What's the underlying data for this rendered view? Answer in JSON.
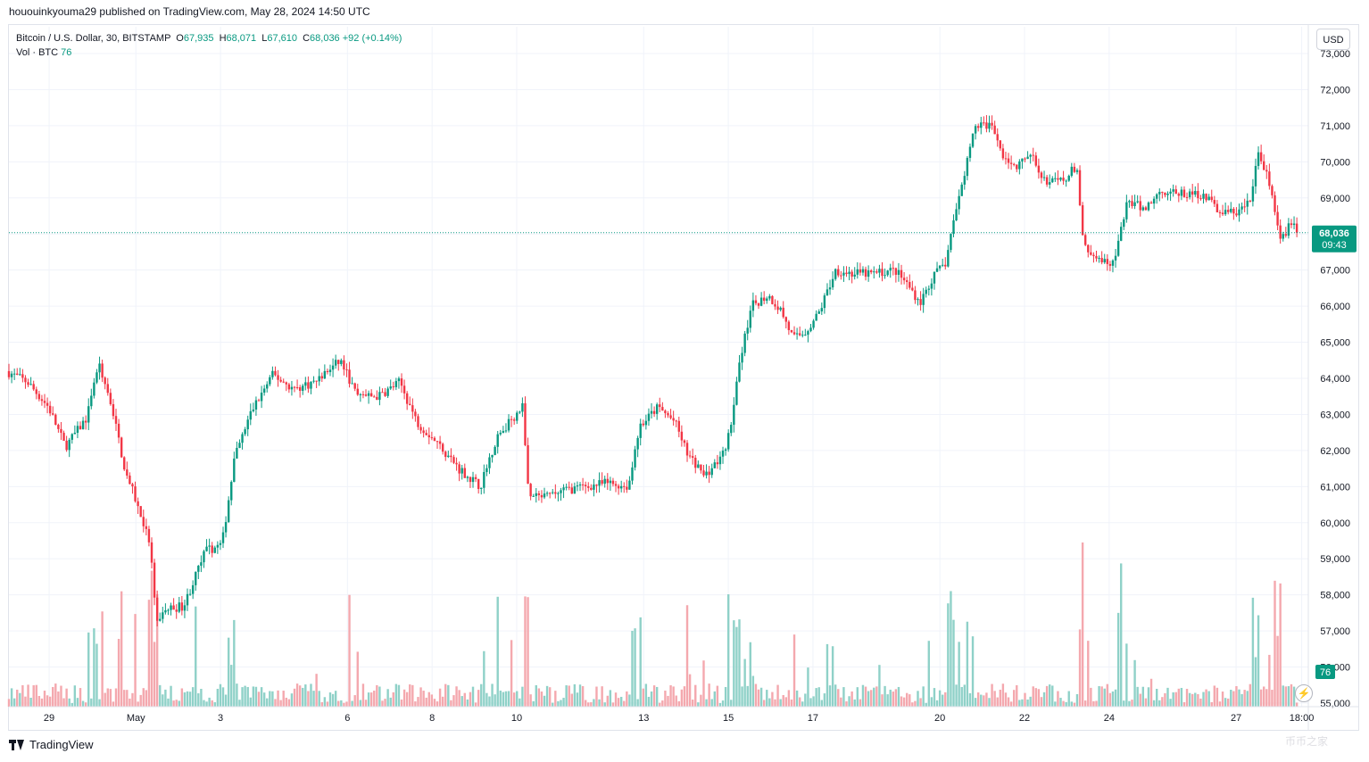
{
  "header": {
    "published_by": "hououinkyouma29 published on TradingView.com, May 28, 2024 14:50 UTC"
  },
  "legend": {
    "symbol": "Bitcoin / U.S. Dollar, 30, BITSTAMP",
    "o_label": "O",
    "o_value": "67,935",
    "h_label": "H",
    "h_value": "68,071",
    "l_label": "L",
    "l_value": "67,610",
    "c_label": "C",
    "c_value": "68,036",
    "change": "+92 (+0.14%)",
    "vol_label": "Vol · BTC",
    "vol_value": "76"
  },
  "price_axis": {
    "currency_button": "USD",
    "last_price_label": "68,036",
    "countdown_label": "09:43",
    "volume_label": "76"
  },
  "footer": {
    "brand": "TradingView",
    "watermark": "币币之家"
  },
  "colors": {
    "up": "#089981",
    "down": "#f23645",
    "up_volume": "#8fd1c8",
    "down_volume": "#f4a8ae",
    "grid": "#f0f3fa"
  },
  "chart_data": {
    "type": "candlestick",
    "interval": "30",
    "y_unit": "USD",
    "ylim": [
      55000,
      73000
    ],
    "y_ticks": [
      "55,000",
      "56,000",
      "57,000",
      "58,000",
      "59,000",
      "60,000",
      "61,000",
      "62,000",
      "63,000",
      "64,000",
      "65,000",
      "66,000",
      "67,000",
      "68,000",
      "69,000",
      "70,000",
      "71,000",
      "72,000",
      "73,000"
    ],
    "x_ticks": [
      "29",
      "May",
      "3",
      "6",
      "8",
      "10",
      "13",
      "15",
      "17",
      "20",
      "22",
      "24",
      "27",
      "18:00"
    ],
    "last_price": 68036,
    "anchors": [
      {
        "t": 0,
        "p": 64200
      },
      {
        "t": 0.5,
        "p": 63900
      },
      {
        "t": 1.0,
        "p": 63200
      },
      {
        "t": 1.4,
        "p": 62100
      },
      {
        "t": 1.9,
        "p": 62900
      },
      {
        "t": 2.2,
        "p": 64400
      },
      {
        "t": 2.5,
        "p": 63200
      },
      {
        "t": 2.8,
        "p": 61500
      },
      {
        "t": 3.1,
        "p": 60500
      },
      {
        "t": 3.4,
        "p": 59400
      },
      {
        "t": 3.55,
        "p": 57300
      },
      {
        "t": 3.8,
        "p": 57600
      },
      {
        "t": 4.2,
        "p": 57700
      },
      {
        "t": 4.7,
        "p": 59200
      },
      {
        "t": 5.1,
        "p": 59400
      },
      {
        "t": 5.4,
        "p": 61800
      },
      {
        "t": 5.8,
        "p": 63100
      },
      {
        "t": 6.3,
        "p": 64100
      },
      {
        "t": 6.8,
        "p": 63700
      },
      {
        "t": 7.3,
        "p": 63900
      },
      {
        "t": 7.9,
        "p": 64500
      },
      {
        "t": 8.3,
        "p": 63500
      },
      {
        "t": 8.8,
        "p": 63500
      },
      {
        "t": 9.3,
        "p": 63900
      },
      {
        "t": 9.7,
        "p": 62800
      },
      {
        "t": 10.2,
        "p": 62200
      },
      {
        "t": 10.7,
        "p": 61500
      },
      {
        "t": 11.2,
        "p": 61000
      },
      {
        "t": 11.6,
        "p": 62400
      },
      {
        "t": 12.2,
        "p": 63200
      },
      {
        "t": 12.35,
        "p": 60700
      },
      {
        "t": 12.7,
        "p": 60700
      },
      {
        "t": 13.2,
        "p": 60900
      },
      {
        "t": 13.7,
        "p": 61000
      },
      {
        "t": 14.2,
        "p": 61100
      },
      {
        "t": 14.7,
        "p": 61000
      },
      {
        "t": 15.0,
        "p": 62700
      },
      {
        "t": 15.4,
        "p": 63200
      },
      {
        "t": 15.8,
        "p": 62800
      },
      {
        "t": 16.1,
        "p": 61900
      },
      {
        "t": 16.5,
        "p": 61300
      },
      {
        "t": 16.9,
        "p": 61800
      },
      {
        "t": 17.1,
        "p": 62500
      },
      {
        "t": 17.3,
        "p": 64200
      },
      {
        "t": 17.6,
        "p": 66000
      },
      {
        "t": 18.0,
        "p": 66300
      },
      {
        "t": 18.3,
        "p": 65900
      },
      {
        "t": 18.6,
        "p": 65100
      },
      {
        "t": 18.9,
        "p": 65300
      },
      {
        "t": 19.2,
        "p": 65800
      },
      {
        "t": 19.6,
        "p": 67000
      },
      {
        "t": 20.0,
        "p": 66900
      },
      {
        "t": 20.5,
        "p": 66900
      },
      {
        "t": 21.0,
        "p": 67000
      },
      {
        "t": 21.3,
        "p": 66600
      },
      {
        "t": 21.6,
        "p": 66100
      },
      {
        "t": 21.9,
        "p": 66800
      },
      {
        "t": 22.2,
        "p": 67200
      },
      {
        "t": 22.5,
        "p": 69000
      },
      {
        "t": 22.7,
        "p": 70000
      },
      {
        "t": 22.9,
        "p": 71000
      },
      {
        "t": 23.3,
        "p": 71000
      },
      {
        "t": 23.5,
        "p": 70300
      },
      {
        "t": 23.8,
        "p": 69800
      },
      {
        "t": 24.2,
        "p": 70200
      },
      {
        "t": 24.6,
        "p": 69400
      },
      {
        "t": 25.0,
        "p": 69500
      },
      {
        "t": 25.3,
        "p": 69900
      },
      {
        "t": 25.45,
        "p": 67700
      },
      {
        "t": 25.8,
        "p": 67400
      },
      {
        "t": 26.0,
        "p": 67200
      },
      {
        "t": 26.2,
        "p": 67300
      },
      {
        "t": 26.5,
        "p": 68900
      },
      {
        "t": 26.9,
        "p": 68700
      },
      {
        "t": 27.3,
        "p": 69200
      },
      {
        "t": 27.8,
        "p": 69100
      },
      {
        "t": 28.3,
        "p": 69100
      },
      {
        "t": 28.7,
        "p": 68600
      },
      {
        "t": 29.1,
        "p": 68600
      },
      {
        "t": 29.4,
        "p": 68900
      },
      {
        "t": 29.6,
        "p": 70300
      },
      {
        "t": 29.9,
        "p": 69200
      },
      {
        "t": 30.1,
        "p": 67800
      },
      {
        "t": 30.4,
        "p": 68400
      },
      {
        "t": 30.5,
        "p": 68036
      }
    ],
    "date_ticks_t": [
      0.95,
      3.0,
      5.0,
      8.0,
      10.0,
      12.0,
      15.0,
      17.0,
      19.0,
      22.0,
      24.0,
      26.0,
      29.0,
      30.55
    ]
  }
}
